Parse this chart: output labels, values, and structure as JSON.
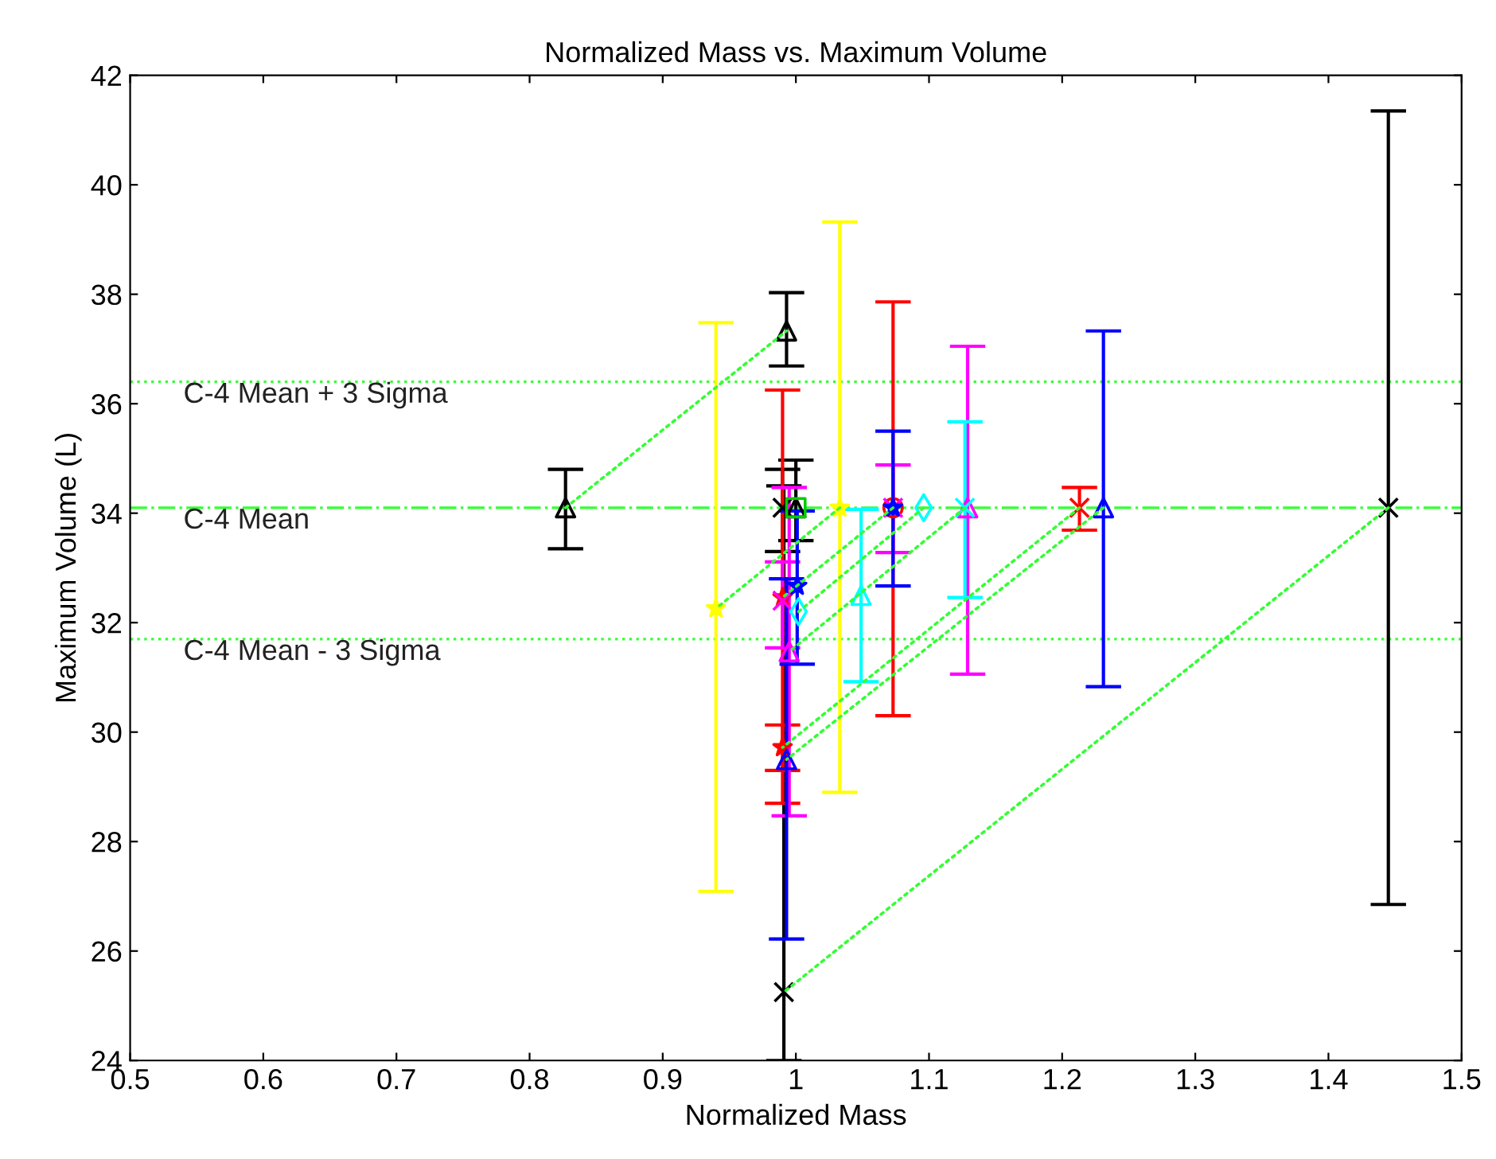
{
  "chart_data": {
    "type": "scatter",
    "title": "Normalized Mass vs. Maximum Volume",
    "xlabel": "Normalized Mass",
    "ylabel": "Maximum Volume (L)",
    "xlim": [
      0.5,
      1.5
    ],
    "xticks": [
      0.5,
      0.6,
      0.7,
      0.8,
      0.9,
      1,
      1.1,
      1.2,
      1.3,
      1.4,
      1.5
    ],
    "ylim": [
      24,
      42
    ],
    "yticks": [
      24,
      26,
      28,
      30,
      32,
      34,
      36,
      38,
      40,
      42
    ],
    "grid": false,
    "legend": false,
    "ref_lines": [
      {
        "axis": "y",
        "value": 36.4,
        "label": "C-4 Mean + 3 Sigma",
        "color": "#33ff33",
        "line_style": "dotted"
      },
      {
        "axis": "y",
        "value": 34.1,
        "label": "C-4 Mean",
        "color": "#33ff33",
        "line_style": "dashed"
      },
      {
        "axis": "y",
        "value": 31.7,
        "label": "C-4 Mean - 3 Sigma",
        "color": "#33ff33",
        "line_style": "dotted"
      }
    ],
    "series": [
      {
        "type": "line",
        "color": "#33ff33",
        "line_style": "dotted",
        "marker": "none",
        "x": [
          0.827,
          0.993
        ],
        "values": [
          34.1,
          37.33
        ]
      },
      {
        "type": "line",
        "color": "#33ff33",
        "line_style": "dotted",
        "marker": "none",
        "x": [
          1.445,
          0.991
        ],
        "values": [
          34.1,
          25.25
        ]
      },
      {
        "type": "line",
        "color": "#33ff33",
        "line_style": "dotted",
        "marker": "none",
        "x": [
          1.231,
          0.993
        ],
        "values": [
          34.1,
          29.5
        ]
      },
      {
        "type": "line",
        "color": "#33ff33",
        "line_style": "dotted",
        "marker": "none",
        "x": [
          1.213,
          0.99
        ],
        "values": [
          34.1,
          29.72
        ]
      },
      {
        "type": "line",
        "color": "#33ff33",
        "line_style": "dotted",
        "marker": "none",
        "x": [
          1.127,
          0.995
        ],
        "values": [
          34.1,
          31.47
        ]
      },
      {
        "type": "line",
        "color": "#33ff33",
        "line_style": "dotted",
        "marker": "none",
        "x": [
          1.073,
          0.99
        ],
        "values": [
          34.1,
          32.46
        ]
      },
      {
        "type": "line",
        "color": "#33ff33",
        "line_style": "dotted",
        "marker": "none",
        "x": [
          1.033,
          0.94
        ],
        "values": [
          34.1,
          32.26
        ]
      },
      {
        "type": "line",
        "color": "#33ff33",
        "line_style": "dotted",
        "marker": "none",
        "x": [
          1.096,
          1.002
        ],
        "values": [
          34.1,
          32.2
        ]
      },
      {
        "color": "#000000",
        "marker": "triangle",
        "x": [
          0.827,
          0.993,
          1.0
        ],
        "values": [
          34.1,
          37.33,
          34.1
        ],
        "errors": [
          [
            33.35,
            34.8
          ],
          [
            36.69,
            38.03
          ],
          [
            33.5,
            34.97
          ]
        ]
      },
      {
        "color": "#000000",
        "marker": "cross",
        "x": [
          0.99,
          0.991,
          1.445
        ],
        "values": [
          34.1,
          25.25,
          34.1
        ],
        "errors": [
          [
            33.3,
            34.8
          ],
          [
            24,
            34.5
          ],
          [
            26.85,
            41.35
          ]
        ]
      },
      {
        "color": "#ffff00",
        "marker": "star",
        "x": [
          0.94,
          1.033
        ],
        "values": [
          32.26,
          34.1
        ],
        "errors": [
          [
            27.09,
            37.48
          ],
          [
            28.9,
            39.32
          ]
        ]
      },
      {
        "color": "#ff0000",
        "marker": "star",
        "x": [
          0.99,
          0.99
        ],
        "values": [
          32.46,
          29.72
        ],
        "errors": [
          [
            28.7,
            36.25
          ],
          [
            29.3,
            30.13
          ]
        ]
      },
      {
        "color": "#ff0000",
        "marker": "circle",
        "x": [
          1.073
        ],
        "values": [
          34.1
        ],
        "errors": [
          [
            30.3,
            37.86
          ]
        ]
      },
      {
        "color": "#ff0000",
        "marker": "cross",
        "x": [
          1.213
        ],
        "values": [
          34.1
        ],
        "errors": [
          [
            33.69,
            34.47
          ]
        ]
      },
      {
        "color": "#ff00ff",
        "marker": "triangle",
        "x": [
          1.129,
          0.995
        ],
        "values": [
          34.1,
          31.47
        ],
        "errors": [
          [
            31.06,
            37.05
          ],
          [
            28.47,
            34.47
          ]
        ]
      },
      {
        "color": "#ff00ff",
        "marker": "cross",
        "x": [
          1.073,
          0.99
        ],
        "values": [
          34.1,
          32.4
        ],
        "errors": [
          [
            33.28,
            34.88
          ],
          [
            31.54,
            33.11
          ]
        ]
      },
      {
        "color": "#00ffff",
        "marker": "triangle",
        "x": [
          1.049
        ],
        "values": [
          32.5
        ],
        "errors": [
          [
            30.92,
            34.07
          ]
        ]
      },
      {
        "color": "#00ffff",
        "marker": "cross",
        "x": [
          1.127
        ],
        "values": [
          34.1
        ],
        "errors": [
          [
            32.46,
            35.67
          ]
        ]
      },
      {
        "color": "#00ffff",
        "marker": "diamond",
        "x": [
          1.096,
          1.002
        ],
        "values": [
          34.1,
          32.2
        ]
      },
      {
        "color": "#0000ff",
        "marker": "triangle",
        "x": [
          1.231,
          0.993
        ],
        "values": [
          34.1,
          29.5
        ],
        "errors": [
          [
            30.83,
            37.33
          ],
          [
            26.22,
            32.8
          ]
        ]
      },
      {
        "color": "#0000ff",
        "marker": "star",
        "x": [
          1.073,
          1.001
        ],
        "values": [
          34.1,
          32.67
        ],
        "errors": [
          [
            32.67,
            35.5
          ],
          [
            31.24,
            34.04
          ]
        ]
      },
      {
        "color": "#00cc00",
        "marker": "square",
        "x": [
          1.0
        ],
        "values": [
          34.1
        ]
      }
    ]
  }
}
